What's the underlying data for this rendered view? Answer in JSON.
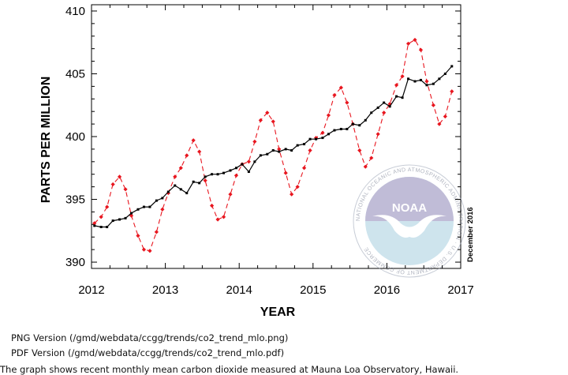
{
  "chart_data": {
    "type": "line",
    "xlabel": "YEAR",
    "ylabel": "PARTS PER MILLION",
    "xlim": [
      2012,
      2017
    ],
    "ylim": [
      389.5,
      410.5
    ],
    "x_ticks": [
      2012,
      2013,
      2014,
      2015,
      2016,
      2017
    ],
    "y_ticks": [
      390,
      395,
      400,
      405,
      410
    ],
    "date_stamp": "December 2016",
    "grid": false,
    "series": [
      {
        "color": "#e8161f",
        "style": "dashed-with-diamonds",
        "x": [
          2012.04,
          2012.13,
          2012.21,
          2012.29,
          2012.38,
          2012.46,
          2012.54,
          2012.63,
          2012.71,
          2012.79,
          2012.88,
          2012.96,
          2013.04,
          2013.13,
          2013.21,
          2013.29,
          2013.38,
          2013.46,
          2013.54,
          2013.63,
          2013.71,
          2013.79,
          2013.88,
          2013.96,
          2014.04,
          2014.13,
          2014.21,
          2014.29,
          2014.38,
          2014.46,
          2014.54,
          2014.63,
          2014.71,
          2014.79,
          2014.88,
          2014.96,
          2015.04,
          2015.13,
          2015.21,
          2015.29,
          2015.38,
          2015.46,
          2015.54,
          2015.63,
          2015.71,
          2015.79,
          2015.88,
          2015.96,
          2016.04,
          2016.13,
          2016.21,
          2016.29,
          2016.38,
          2016.46,
          2016.54,
          2016.63,
          2016.71,
          2016.79,
          2016.88
        ],
        "values": [
          393.1,
          393.6,
          394.4,
          396.2,
          396.8,
          395.8,
          393.7,
          392.1,
          391.0,
          390.9,
          392.4,
          394.2,
          395.5,
          396.8,
          397.5,
          398.5,
          399.7,
          398.8,
          396.5,
          394.5,
          393.4,
          393.6,
          395.4,
          396.9,
          397.8,
          398.0,
          399.6,
          401.3,
          401.9,
          401.2,
          399.0,
          397.1,
          395.4,
          396.0,
          397.5,
          398.9,
          399.9,
          400.3,
          401.7,
          403.3,
          403.9,
          402.7,
          401.0,
          398.9,
          397.6,
          398.3,
          400.2,
          401.9,
          402.6,
          404.1,
          404.8,
          407.4,
          407.7,
          406.9,
          404.4,
          402.5,
          401.0,
          401.6,
          403.6
        ]
      },
      {
        "color": "#000000",
        "style": "solid-with-squares",
        "x": [
          2012.04,
          2012.13,
          2012.21,
          2012.29,
          2012.38,
          2012.46,
          2012.54,
          2012.63,
          2012.71,
          2012.79,
          2012.88,
          2012.96,
          2013.04,
          2013.13,
          2013.21,
          2013.29,
          2013.38,
          2013.46,
          2013.54,
          2013.63,
          2013.71,
          2013.79,
          2013.88,
          2013.96,
          2014.04,
          2014.13,
          2014.21,
          2014.29,
          2014.38,
          2014.46,
          2014.54,
          2014.63,
          2014.71,
          2014.79,
          2014.88,
          2014.96,
          2015.04,
          2015.13,
          2015.21,
          2015.29,
          2015.38,
          2015.46,
          2015.54,
          2015.63,
          2015.71,
          2015.79,
          2015.88,
          2015.96,
          2016.04,
          2016.13,
          2016.21,
          2016.29,
          2016.38,
          2016.46,
          2016.54,
          2016.63,
          2016.71,
          2016.79,
          2016.88
        ],
        "values": [
          392.9,
          392.8,
          392.8,
          393.3,
          393.4,
          393.5,
          393.9,
          394.2,
          394.4,
          394.4,
          394.9,
          395.1,
          395.6,
          396.1,
          395.8,
          395.5,
          396.4,
          396.3,
          396.8,
          397.0,
          397.0,
          397.1,
          397.3,
          397.5,
          397.8,
          397.2,
          398.0,
          398.5,
          398.6,
          398.9,
          398.8,
          399.0,
          398.9,
          399.3,
          399.4,
          399.8,
          399.8,
          399.9,
          400.2,
          400.5,
          400.6,
          400.6,
          401.0,
          400.9,
          401.3,
          401.9,
          402.3,
          402.7,
          402.4,
          403.2,
          403.1,
          404.6,
          404.4,
          404.5,
          404.1,
          404.2,
          404.6,
          405.0,
          405.6
        ]
      }
    ]
  },
  "captions": {
    "png_version": "PNG Version (/gmd/webdata/ccgg/trends/co2_trend_mlo.png)",
    "pdf_version": "PDF Version (/gmd/webdata/ccgg/trends/co2_trend_mlo.pdf)",
    "description": "The graph shows recent monthly mean carbon dioxide measured at Mauna Loa Observatory, Hawaii."
  },
  "logo": {
    "text": "NOAA",
    "ring_text": "NATIONAL OCEANIC AND ATMOSPHERIC ADMINISTRATION · U.S. DEPARTMENT OF COMMERCE"
  }
}
